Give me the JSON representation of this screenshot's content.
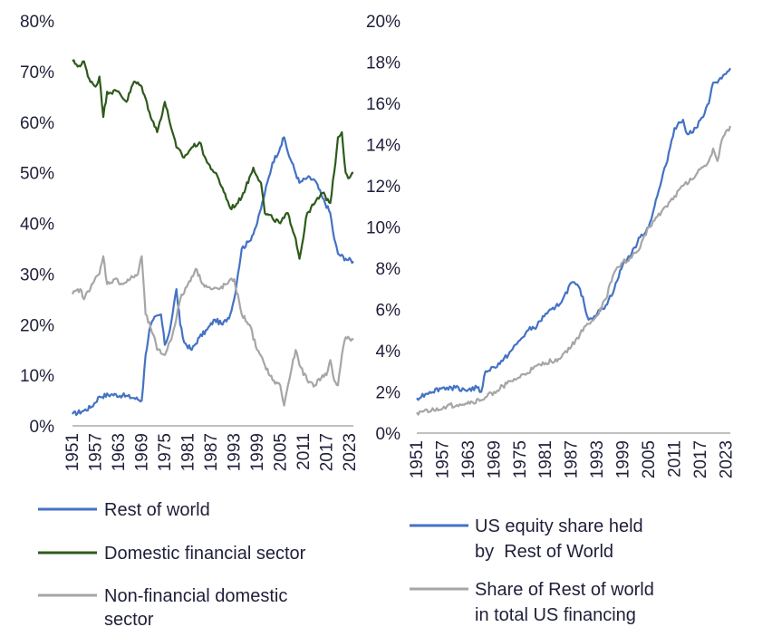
{
  "chart_data": [
    {
      "type": "line",
      "x_ticks": [
        "1951",
        "1957",
        "1963",
        "1969",
        "1975",
        "1981",
        "1987",
        "1993",
        "1999",
        "2005",
        "2011",
        "2017",
        "2023"
      ],
      "xlim": [
        1951,
        2024
      ],
      "y_ticks": [
        "0%",
        "10%",
        "20%",
        "30%",
        "40%",
        "50%",
        "60%",
        "70%",
        "80%"
      ],
      "ylim": [
        0,
        80
      ],
      "legend_position": "bottom",
      "series": [
        {
          "name": "Rest of world",
          "color": "#4472c4",
          "points": [
            [
              1951,
              2.3
            ],
            [
              1954,
              3.0
            ],
            [
              1956,
              3.8
            ],
            [
              1958,
              5.8
            ],
            [
              1961,
              6.2
            ],
            [
              1964,
              6.0
            ],
            [
              1967,
              5.5
            ],
            [
              1969,
              5.0
            ],
            [
              1970,
              14.0
            ],
            [
              1971,
              19.0
            ],
            [
              1972,
              21.0
            ],
            [
              1974,
              22.0
            ],
            [
              1975,
              16.0
            ],
            [
              1976,
              18.0
            ],
            [
              1977,
              22.0
            ],
            [
              1978,
              27.0
            ],
            [
              1979,
              20.0
            ],
            [
              1980,
              16.5
            ],
            [
              1982,
              15.0
            ],
            [
              1984,
              17.5
            ],
            [
              1986,
              19.0
            ],
            [
              1988,
              21.0
            ],
            [
              1990,
              20.0
            ],
            [
              1992,
              22.0
            ],
            [
              1993,
              25.0
            ],
            [
              1994,
              30.0
            ],
            [
              1995,
              35.0
            ],
            [
              1997,
              36.5
            ],
            [
              1999,
              40.0
            ],
            [
              2001,
              46.0
            ],
            [
              2003,
              52.0
            ],
            [
              2005,
              55.0
            ],
            [
              2006,
              57.0
            ],
            [
              2007,
              54.0
            ],
            [
              2008,
              52.0
            ],
            [
              2010,
              48.0
            ],
            [
              2012,
              49.0
            ],
            [
              2014,
              48.5
            ],
            [
              2016,
              45.0
            ],
            [
              2018,
              42.0
            ],
            [
              2019,
              37.0
            ],
            [
              2020,
              34.0
            ],
            [
              2022,
              33.0
            ],
            [
              2024,
              32.5
            ]
          ]
        },
        {
          "name": "Domestic financial sector",
          "color": "#2e5a1c",
          "points": [
            [
              1951,
              72.0
            ],
            [
              1953,
              71.0
            ],
            [
              1954,
              72.0
            ],
            [
              1955,
              69.0
            ],
            [
              1957,
              67.0
            ],
            [
              1958,
              69.0
            ],
            [
              1959,
              61.0
            ],
            [
              1960,
              66.0
            ],
            [
              1963,
              66.0
            ],
            [
              1965,
              64.0
            ],
            [
              1967,
              68.0
            ],
            [
              1969,
              67.0
            ],
            [
              1971,
              62.0
            ],
            [
              1973,
              58.0
            ],
            [
              1975,
              64.0
            ],
            [
              1977,
              58.0
            ],
            [
              1978,
              55.0
            ],
            [
              1980,
              53.0
            ],
            [
              1982,
              55.0
            ],
            [
              1984,
              56.0
            ],
            [
              1986,
              52.0
            ],
            [
              1988,
              50.0
            ],
            [
              1990,
              47.0
            ],
            [
              1992,
              43.0
            ],
            [
              1994,
              44.0
            ],
            [
              1996,
              47.0
            ],
            [
              1998,
              51.0
            ],
            [
              2000,
              48.0
            ],
            [
              2001,
              42.0
            ],
            [
              2003,
              41.0
            ],
            [
              2005,
              40.0
            ],
            [
              2007,
              42.0
            ],
            [
              2009,
              37.0
            ],
            [
              2010,
              33.0
            ],
            [
              2012,
              42.0
            ],
            [
              2014,
              44.0
            ],
            [
              2016,
              46.0
            ],
            [
              2018,
              44.0
            ],
            [
              2019,
              50.0
            ],
            [
              2020,
              57.0
            ],
            [
              2021,
              58.0
            ],
            [
              2022,
              50.0
            ],
            [
              2023,
              49.0
            ],
            [
              2024,
              50.0
            ]
          ]
        },
        {
          "name": "Non-financial domestic sector",
          "color": "#a6a6a6",
          "points": [
            [
              1951,
              26.0
            ],
            [
              1953,
              27.0
            ],
            [
              1954,
              25.0
            ],
            [
              1956,
              28.0
            ],
            [
              1958,
              30.0
            ],
            [
              1959,
              33.5
            ],
            [
              1960,
              28.0
            ],
            [
              1962,
              29.0
            ],
            [
              1964,
              28.0
            ],
            [
              1966,
              29.0
            ],
            [
              1968,
              30.0
            ],
            [
              1969,
              33.5
            ],
            [
              1970,
              22.0
            ],
            [
              1972,
              18.0
            ],
            [
              1973,
              15.0
            ],
            [
              1975,
              14.0
            ],
            [
              1977,
              18.0
            ],
            [
              1979,
              25.0
            ],
            [
              1981,
              28.0
            ],
            [
              1983,
              31.0
            ],
            [
              1985,
              28.0
            ],
            [
              1987,
              27.0
            ],
            [
              1989,
              27.0
            ],
            [
              1991,
              28.0
            ],
            [
              1993,
              29.0
            ],
            [
              1995,
              22.0
            ],
            [
              1997,
              20.0
            ],
            [
              1999,
              15.0
            ],
            [
              2001,
              12.0
            ],
            [
              2003,
              9.0
            ],
            [
              2005,
              8.0
            ],
            [
              2006,
              4.0
            ],
            [
              2007,
              8.0
            ],
            [
              2009,
              15.0
            ],
            [
              2010,
              12.0
            ],
            [
              2012,
              9.0
            ],
            [
              2014,
              8.0
            ],
            [
              2016,
              10.0
            ],
            [
              2017,
              10.0
            ],
            [
              2018,
              13.0
            ],
            [
              2019,
              9.0
            ],
            [
              2020,
              8.0
            ],
            [
              2021,
              14.0
            ],
            [
              2022,
              17.5
            ],
            [
              2024,
              17.0
            ]
          ]
        }
      ],
      "legend": [
        {
          "label": "Rest of world",
          "color": "#4472c4"
        },
        {
          "label": "Domestic financial sector",
          "color": "#2e5a1c"
        },
        {
          "label": "Non-financial domestic sector",
          "color": "#a6a6a6"
        }
      ]
    },
    {
      "type": "line",
      "x_ticks": [
        "1951",
        "1957",
        "1963",
        "1969",
        "1975",
        "1981",
        "1987",
        "1993",
        "1999",
        "2005",
        "2011",
        "2017",
        "2023"
      ],
      "xlim": [
        1951,
        2024
      ],
      "y_ticks": [
        "0%",
        "2%",
        "4%",
        "6%",
        "8%",
        "10%",
        "12%",
        "14%",
        "16%",
        "18%",
        "20%"
      ],
      "ylim": [
        0,
        20
      ],
      "legend_position": "bottom",
      "series": [
        {
          "name": "US equity share held by Rest of World",
          "color": "#4472c4",
          "points": [
            [
              1951,
              1.7
            ],
            [
              1954,
              2.0
            ],
            [
              1957,
              2.2
            ],
            [
              1960,
              2.2
            ],
            [
              1963,
              2.1
            ],
            [
              1965,
              2.2
            ],
            [
              1966,
              2.0
            ],
            [
              1967,
              3.0
            ],
            [
              1969,
              3.2
            ],
            [
              1971,
              3.5
            ],
            [
              1973,
              4.0
            ],
            [
              1975,
              4.5
            ],
            [
              1977,
              5.0
            ],
            [
              1979,
              5.2
            ],
            [
              1981,
              5.8
            ],
            [
              1983,
              6.0
            ],
            [
              1985,
              6.5
            ],
            [
              1987,
              7.3
            ],
            [
              1989,
              7.0
            ],
            [
              1991,
              5.5
            ],
            [
              1993,
              5.8
            ],
            [
              1995,
              6.2
            ],
            [
              1997,
              7.0
            ],
            [
              1999,
              8.2
            ],
            [
              2001,
              8.7
            ],
            [
              2003,
              9.5
            ],
            [
              2005,
              10.0
            ],
            [
              2007,
              11.5
            ],
            [
              2009,
              13.0
            ],
            [
              2011,
              14.8
            ],
            [
              2013,
              15.2
            ],
            [
              2014,
              14.5
            ],
            [
              2016,
              14.8
            ],
            [
              2018,
              15.5
            ],
            [
              2019,
              16.0
            ],
            [
              2020,
              17.0
            ],
            [
              2022,
              17.2
            ],
            [
              2024,
              17.7
            ]
          ]
        },
        {
          "name": "Share of Rest of world in total US financing",
          "color": "#a6a6a6",
          "points": [
            [
              1951,
              1.0
            ],
            [
              1955,
              1.1
            ],
            [
              1958,
              1.3
            ],
            [
              1961,
              1.4
            ],
            [
              1964,
              1.5
            ],
            [
              1966,
              1.6
            ],
            [
              1969,
              2.0
            ],
            [
              1972,
              2.4
            ],
            [
              1975,
              2.7
            ],
            [
              1978,
              3.1
            ],
            [
              1981,
              3.4
            ],
            [
              1984,
              3.6
            ],
            [
              1987,
              4.2
            ],
            [
              1989,
              4.8
            ],
            [
              1991,
              5.3
            ],
            [
              1993,
              5.7
            ],
            [
              1995,
              6.5
            ],
            [
              1997,
              7.8
            ],
            [
              1999,
              8.3
            ],
            [
              2001,
              8.5
            ],
            [
              2003,
              9.0
            ],
            [
              2005,
              10.0
            ],
            [
              2007,
              10.5
            ],
            [
              2009,
              11.0
            ],
            [
              2011,
              11.5
            ],
            [
              2013,
              12.0
            ],
            [
              2015,
              12.3
            ],
            [
              2017,
              12.8
            ],
            [
              2019,
              13.2
            ],
            [
              2020,
              13.8
            ],
            [
              2021,
              13.2
            ],
            [
              2022,
              14.2
            ],
            [
              2024,
              14.9
            ]
          ]
        }
      ],
      "legend": [
        {
          "label_lines": [
            "US equity share held",
            "by  Rest of World"
          ],
          "color": "#4472c4"
        },
        {
          "label_lines": [
            "Share of Rest of world",
            "in total US financing"
          ],
          "color": "#a6a6a6"
        }
      ]
    }
  ]
}
